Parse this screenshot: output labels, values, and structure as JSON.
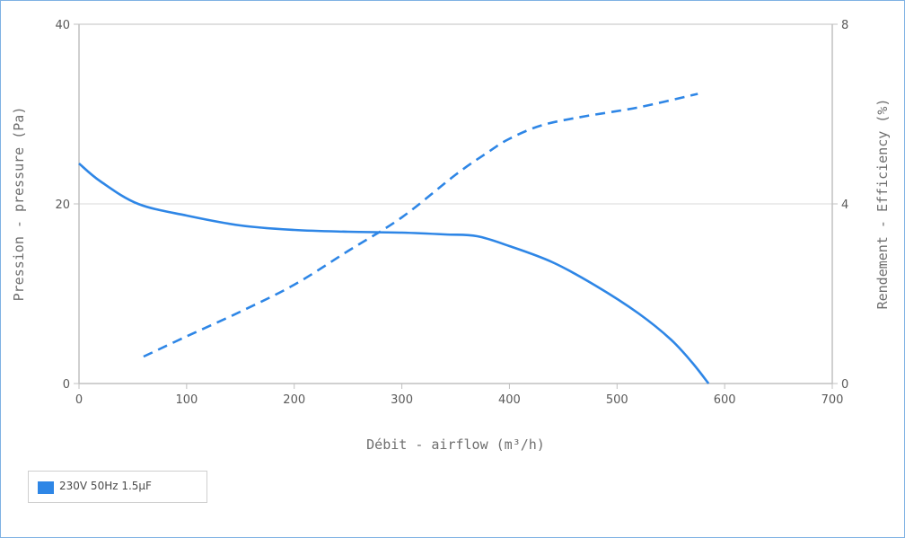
{
  "chart_data": {
    "type": "line",
    "title": "",
    "xlabel": "Débit - airflow (m³/h)",
    "ylabel": "Pression - pressure (Pa)",
    "y2label": "Rendement - Efficiency (%)",
    "xlim": [
      0,
      700
    ],
    "ylim": [
      0,
      40
    ],
    "y2lim": [
      0,
      8
    ],
    "x_ticks": [
      "0",
      "100",
      "200",
      "300",
      "400",
      "500",
      "600",
      "700"
    ],
    "y_ticks": [
      "0",
      "20",
      "40"
    ],
    "y2_ticks": [
      "0",
      "4",
      "8"
    ],
    "grid": true,
    "legend_position": "bottom-left",
    "series": [
      {
        "name": "230V 50Hz 1.5µF",
        "axis": "left",
        "line_style": "solid",
        "color": "#2e86e6",
        "x": [
          0,
          20,
          55,
          100,
          150,
          200,
          250,
          300,
          340,
          370,
          400,
          440,
          480,
          520,
          550,
          570,
          585
        ],
        "y": [
          24.5,
          22.5,
          20,
          18.7,
          17.6,
          17.1,
          16.9,
          16.8,
          16.6,
          16.4,
          15.3,
          13.5,
          10.9,
          7.8,
          4.9,
          2.3,
          0
        ]
      },
      {
        "name": "",
        "axis": "right",
        "line_style": "dashed",
        "color": "#2e86e6",
        "x": [
          60,
          100,
          150,
          200,
          250,
          300,
          350,
          380,
          400,
          430,
          470,
          520,
          575
        ],
        "y": [
          0.6,
          1.05,
          1.6,
          2.2,
          2.95,
          3.7,
          4.65,
          5.15,
          5.45,
          5.75,
          5.95,
          6.15,
          6.45
        ]
      }
    ]
  }
}
